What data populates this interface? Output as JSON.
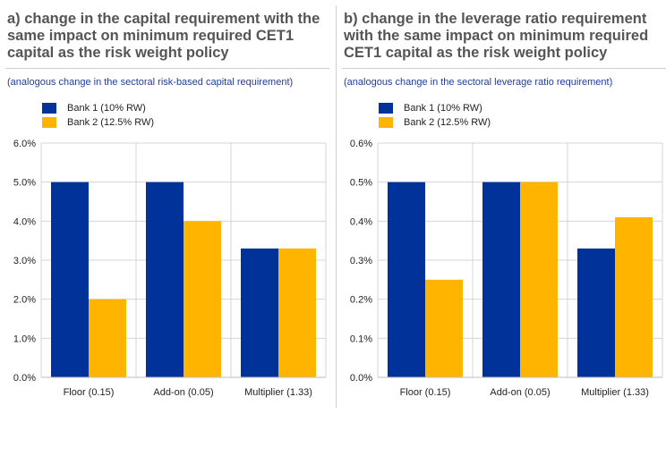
{
  "colors": {
    "bank1": "#003299",
    "bank2": "#ffb400"
  },
  "chart_data": [
    {
      "type": "bar",
      "title": "a) change in the capital requirement with the same impact on minimum required CET1 capital as the risk weight policy",
      "subtitle": "(analogous change in the sectoral risk-based capital requirement)",
      "categories": [
        "Floor (0.15)",
        "Add-on (0.05)",
        "Multiplier (1.33)"
      ],
      "series": [
        {
          "name": "Bank 1 (10% RW)",
          "values": [
            5.0,
            5.0,
            3.3
          ]
        },
        {
          "name": "Bank 2 (12.5% RW)",
          "values": [
            2.0,
            4.0,
            3.3
          ]
        }
      ],
      "ylim": [
        0,
        6
      ],
      "yticks": [
        "0.0%",
        "1.0%",
        "2.0%",
        "3.0%",
        "4.0%",
        "5.0%",
        "6.0%"
      ],
      "legend": "top-left",
      "xlabel": "",
      "ylabel": ""
    },
    {
      "type": "bar",
      "title": "b) change in the leverage ratio requirement with the same impact on minimum required CET1 capital as the risk weight policy",
      "subtitle": "(analogous change in the sectoral leverage ratio requirement)",
      "categories": [
        "Floor (0.15)",
        "Add-on (0.05)",
        "Multiplier (1.33)"
      ],
      "series": [
        {
          "name": "Bank 1 (10% RW)",
          "values": [
            0.5,
            0.5,
            0.33
          ]
        },
        {
          "name": "Bank 2 (12.5% RW)",
          "values": [
            0.25,
            0.5,
            0.41
          ]
        }
      ],
      "ylim": [
        0,
        0.6
      ],
      "yticks": [
        "0.0%",
        "0.1%",
        "0.2%",
        "0.3%",
        "0.4%",
        "0.5%",
        "0.6%"
      ],
      "legend": "top-left",
      "xlabel": "",
      "ylabel": ""
    }
  ]
}
